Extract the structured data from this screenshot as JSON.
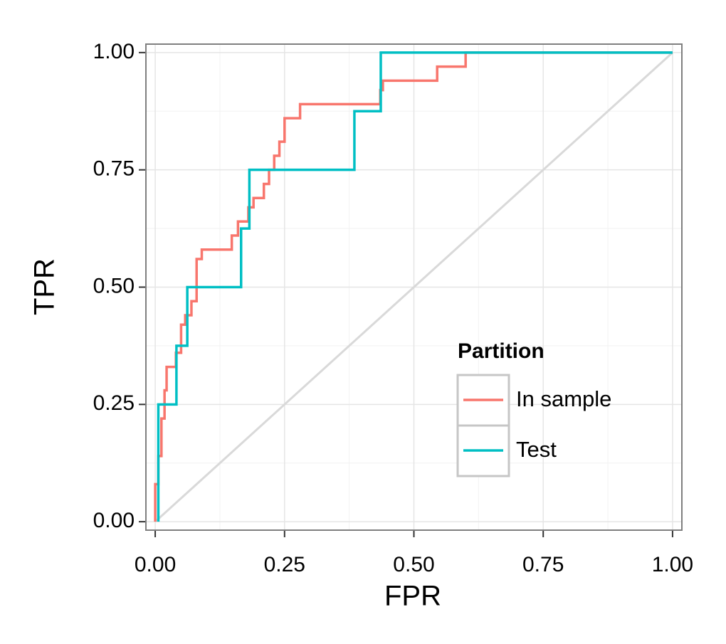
{
  "chart_data": {
    "type": "line",
    "x_label": "FPR",
    "y_label": "TPR",
    "xlim": [
      -0.018,
      1.018
    ],
    "ylim": [
      -0.018,
      1.018
    ],
    "xticks": [
      {
        "value": 0,
        "label": "0.00"
      },
      {
        "value": 0.25,
        "label": "0.25"
      },
      {
        "value": 0.5,
        "label": "0.50"
      },
      {
        "value": 0.75,
        "label": "0.75"
      },
      {
        "value": 1,
        "label": "1.00"
      }
    ],
    "yticks": [
      {
        "value": 0,
        "label": "0.00"
      },
      {
        "value": 0.25,
        "label": "0.25"
      },
      {
        "value": 0.5,
        "label": "0.50"
      },
      {
        "value": 0.75,
        "label": "0.75"
      },
      {
        "value": 1,
        "label": "1.00"
      }
    ],
    "grid": true,
    "minor_grid": true,
    "step": true,
    "legend": "lower right",
    "legend_title": "Partition",
    "diagonal": {
      "x": [
        0,
        1
      ],
      "y": [
        0,
        1
      ],
      "color": "#d9d9d9"
    },
    "series": [
      {
        "name": "In sample",
        "color": "#F8766D",
        "x": [
          0,
          0,
          0.006,
          0.006,
          0.012,
          0.012,
          0.018,
          0.018,
          0.022,
          0.022,
          0.04,
          0.04,
          0.05,
          0.05,
          0.058,
          0.058,
          0.07,
          0.07,
          0.08,
          0.08,
          0.09,
          0.09,
          0.148,
          0.148,
          0.16,
          0.16,
          0.18,
          0.18,
          0.19,
          0.19,
          0.21,
          0.21,
          0.22,
          0.22,
          0.23,
          0.23,
          0.24,
          0.24,
          0.25,
          0.25,
          0.28,
          0.28,
          0.435,
          0.435,
          0.44,
          0.44,
          0.545,
          0.545,
          0.6,
          0.6,
          1
        ],
        "y": [
          0,
          0.08,
          0.08,
          0.14,
          0.14,
          0.22,
          0.22,
          0.28,
          0.28,
          0.33,
          0.33,
          0.36,
          0.36,
          0.42,
          0.42,
          0.44,
          0.44,
          0.47,
          0.47,
          0.56,
          0.56,
          0.58,
          0.58,
          0.61,
          0.61,
          0.64,
          0.64,
          0.67,
          0.67,
          0.69,
          0.69,
          0.72,
          0.72,
          0.75,
          0.75,
          0.78,
          0.78,
          0.81,
          0.81,
          0.86,
          0.86,
          0.89,
          0.89,
          0.92,
          0.92,
          0.94,
          0.94,
          0.97,
          0.97,
          1,
          1
        ]
      },
      {
        "name": "Test",
        "color": "#00BFC4",
        "x": [
          0.006,
          0.006,
          0.041,
          0.041,
          0.062,
          0.062,
          0.166,
          0.166,
          0.182,
          0.182,
          0.385,
          0.385,
          0.436,
          0.436,
          1
        ],
        "y": [
          0,
          0.25,
          0.25,
          0.375,
          0.375,
          0.5,
          0.5,
          0.625,
          0.625,
          0.75,
          0.75,
          0.875,
          0.875,
          1,
          1
        ]
      }
    ]
  }
}
